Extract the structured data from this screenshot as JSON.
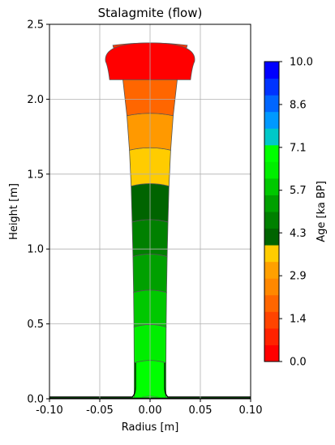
{
  "chart_data": {
    "type": "area",
    "title": "Stalagmite (flow)",
    "xlabel": "Radius [m]",
    "ylabel": "Height [m]",
    "xlim": [
      -0.1,
      0.1
    ],
    "ylim": [
      0,
      2.5
    ],
    "xticks": [
      "-0.10",
      "-0.05",
      "0.00",
      "0.05",
      "0.10"
    ],
    "yticks": [
      "0.0",
      "0.5",
      "1.0",
      "1.5",
      "2.0",
      "2.5"
    ],
    "grid": true,
    "colorbar": {
      "label": "Age [ka BP]",
      "min": 0.0,
      "max": 10.0,
      "tick_labels": [
        "0.0",
        "1.4",
        "2.9",
        "4.3",
        "5.7",
        "7.1",
        "8.6",
        "10.0"
      ],
      "tick_values": [
        0.0,
        1.43,
        2.86,
        4.29,
        5.71,
        7.14,
        8.57,
        10.0
      ],
      "colors": [
        "#ff0000",
        "#ff2200",
        "#ff4400",
        "#ff6600",
        "#ff8800",
        "#ffa000",
        "#ffcc00",
        "#006400",
        "#008000",
        "#00a000",
        "#00c800",
        "#00ee00",
        "#00ff00",
        "#00c8c8",
        "#0099ff",
        "#0066ff",
        "#0033ff",
        "#0000ff"
      ]
    },
    "layers": [
      {
        "y0": 0.0,
        "y1": 0.24,
        "r0": 0.0158,
        "r1": 0.0158,
        "color": "#00ff00"
      },
      {
        "y0": 0.24,
        "y1": 0.48,
        "r0": 0.0158,
        "r1": 0.016,
        "color": "#00ee00"
      },
      {
        "y0": 0.48,
        "y1": 0.71,
        "r0": 0.016,
        "r1": 0.0164,
        "color": "#00c800"
      },
      {
        "y0": 0.71,
        "y1": 0.95,
        "r0": 0.0164,
        "r1": 0.017,
        "color": "#00a000"
      },
      {
        "y0": 0.95,
        "y1": 1.18,
        "r0": 0.017,
        "r1": 0.0178,
        "color": "#008000"
      },
      {
        "y0": 1.18,
        "y1": 1.42,
        "r0": 0.0178,
        "r1": 0.0188,
        "color": "#006400"
      },
      {
        "y0": 1.42,
        "y1": 1.66,
        "r0": 0.0188,
        "r1": 0.0205,
        "color": "#ffcc00"
      },
      {
        "y0": 1.66,
        "y1": 1.89,
        "r0": 0.0205,
        "r1": 0.023,
        "color": "#ff9900"
      },
      {
        "y0": 1.89,
        "y1": 2.13,
        "r0": 0.023,
        "r1": 0.027,
        "color": "#ff6600"
      },
      {
        "y0": 2.13,
        "y1": 2.36,
        "r0": 0.027,
        "r1": 0.037,
        "color": "#ff3300"
      },
      {
        "y0": 2.36,
        "y1": 2.36,
        "r0": 0.037,
        "r1": 0.037,
        "color": "#ff0000"
      }
    ]
  }
}
